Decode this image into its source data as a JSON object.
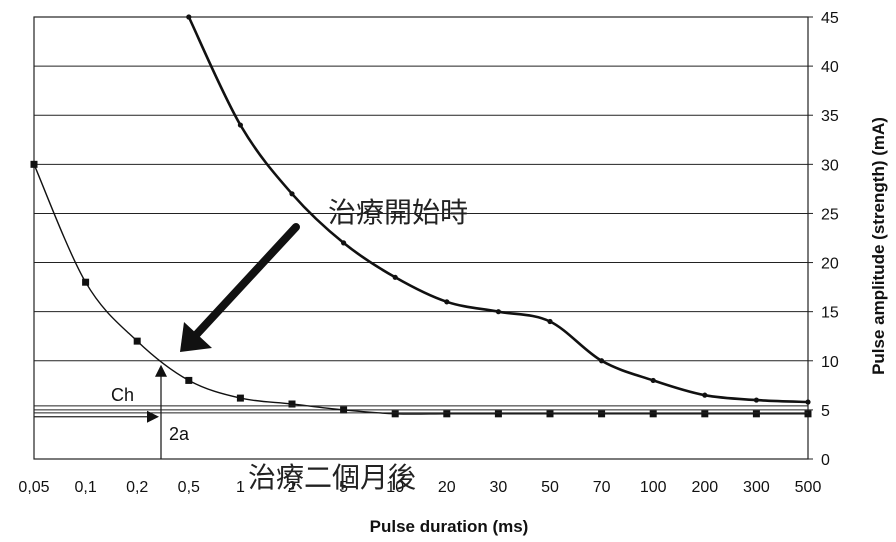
{
  "chart_data": {
    "type": "line",
    "xlabel": "Pulse duration (ms)",
    "ylabel": "Pulse amplitude (strength) (mA)",
    "x_tick_labels": [
      "0,05",
      "0,1",
      "0,2",
      "0,5",
      "1",
      "2",
      "5",
      "10",
      "20",
      "30",
      "50",
      "70",
      "100",
      "200",
      "300",
      "500"
    ],
    "y_tick_labels": [
      "0",
      "5",
      "10",
      "15",
      "20",
      "25",
      "30",
      "35",
      "40",
      "45"
    ],
    "ylim": [
      0,
      45
    ],
    "y_axis_position": "right",
    "grid": "horizontal",
    "legend": "none",
    "series": [
      {
        "x": [
          "0,5",
          "1",
          "2",
          "5",
          "10",
          "20",
          "30",
          "50",
          "70",
          "100",
          "200",
          "300",
          "500"
        ],
        "values": [
          45,
          34,
          27,
          22,
          18.5,
          16,
          15,
          14,
          10,
          8,
          6.5,
          6,
          5.8
        ],
        "marker": "circle",
        "stroke": "thick"
      },
      {
        "x": [
          "0,05",
          "0,1",
          "0,2",
          "0,5",
          "1",
          "2",
          "5",
          "10",
          "20",
          "30",
          "50",
          "70",
          "100",
          "200",
          "300",
          "500"
        ],
        "values": [
          30,
          18,
          12,
          8,
          6.2,
          5.6,
          5,
          4.6,
          4.6,
          4.6,
          4.6,
          4.6,
          4.6,
          4.6,
          4.6,
          4.6
        ],
        "marker": "square",
        "stroke": "thin"
      }
    ],
    "annotations": {
      "start_label": "治療開始時",
      "after_label": "治療二個月後",
      "ch_label": "Ch",
      "two_a_label": "2a"
    }
  }
}
